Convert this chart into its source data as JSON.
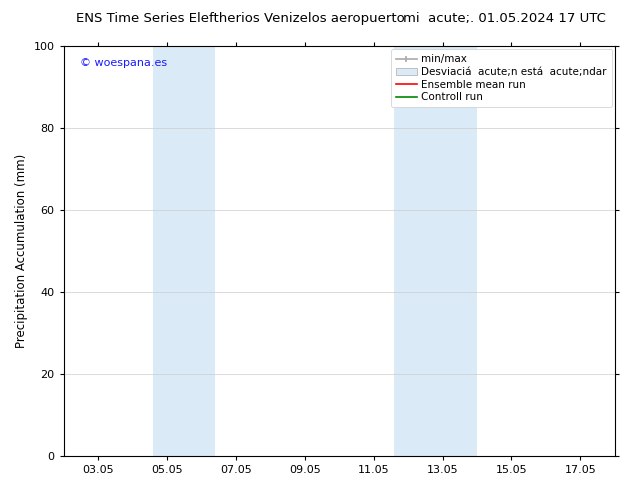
{
  "title_left": "ENS Time Series Eleftherios Venizelos aeropuerto",
  "title_right": "mi  acute;. 01.05.2024 17 UTC",
  "ylabel": "Precipitation Accumulation (mm)",
  "ylim": [
    0,
    100
  ],
  "yticks": [
    0,
    20,
    40,
    60,
    80,
    100
  ],
  "bg_color": "#ffffff",
  "plot_bg_color": "#ffffff",
  "watermark": "© woespana.es",
  "watermark_color": "#1a1aff",
  "band1_x0": 3.6,
  "band1_x1": 5.4,
  "band2_x0": 10.6,
  "band2_x1": 13.0,
  "band_color": "#daeaf7",
  "xtick_labels": [
    "03.05",
    "05.05",
    "07.05",
    "09.05",
    "11.05",
    "13.05",
    "15.05",
    "17.05"
  ],
  "xtick_positions": [
    2,
    4,
    6,
    8,
    10,
    12,
    14,
    16
  ],
  "xlim": [
    1,
    17
  ],
  "grid_color": "#cccccc",
  "title_fontsize": 9.5,
  "axis_label_fontsize": 8.5,
  "tick_fontsize": 8,
  "legend_fontsize": 7.5,
  "watermark_fontsize": 8
}
